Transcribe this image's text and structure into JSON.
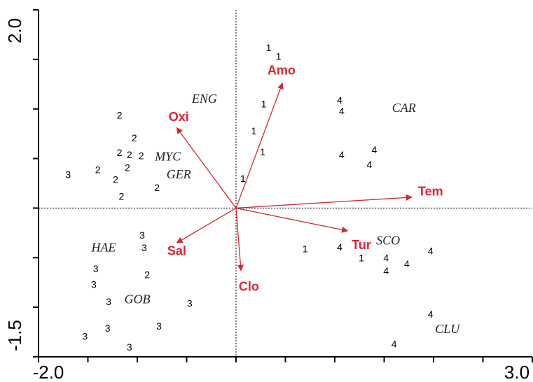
{
  "chart_data": {
    "type": "scatter",
    "title": "",
    "xlabel": "",
    "ylabel": "",
    "xlim": [
      -2.0,
      3.0
    ],
    "ylim": [
      -1.5,
      2.0
    ],
    "x_tick_labels": [
      "-2.0",
      "3.0"
    ],
    "y_tick_labels": [
      "2.0",
      "-1.5"
    ],
    "origin_lines": true,
    "sample_points": [
      {
        "label": "1",
        "x": 0.33,
        "y": 1.61
      },
      {
        "label": "1",
        "x": 0.43,
        "y": 1.52
      },
      {
        "label": "1",
        "x": 0.28,
        "y": 1.04
      },
      {
        "label": "1",
        "x": 0.18,
        "y": 0.77
      },
      {
        "label": "1",
        "x": 0.27,
        "y": 0.56
      },
      {
        "label": "1",
        "x": 0.07,
        "y": 0.29
      },
      {
        "label": "1",
        "x": 0.7,
        "y": -0.42
      },
      {
        "label": "1",
        "x": 1.27,
        "y": -0.51
      },
      {
        "label": "2",
        "x": -1.18,
        "y": 0.93
      },
      {
        "label": "2",
        "x": -1.03,
        "y": 0.7
      },
      {
        "label": "2",
        "x": -1.18,
        "y": 0.55
      },
      {
        "label": "2",
        "x": -1.08,
        "y": 0.53
      },
      {
        "label": "2",
        "x": -0.96,
        "y": 0.52
      },
      {
        "label": "2",
        "x": -1.1,
        "y": 0.4
      },
      {
        "label": "2",
        "x": -1.4,
        "y": 0.38
      },
      {
        "label": "2",
        "x": -1.22,
        "y": 0.28
      },
      {
        "label": "2",
        "x": -0.8,
        "y": 0.2
      },
      {
        "label": "2",
        "x": -1.16,
        "y": 0.11
      },
      {
        "label": "2",
        "x": -0.9,
        "y": -0.68
      },
      {
        "label": "3",
        "x": -1.7,
        "y": 0.33
      },
      {
        "label": "3",
        "x": -0.95,
        "y": -0.28
      },
      {
        "label": "3",
        "x": -0.93,
        "y": -0.41
      },
      {
        "label": "3",
        "x": -1.42,
        "y": -0.62
      },
      {
        "label": "3",
        "x": -1.44,
        "y": -0.78
      },
      {
        "label": "3",
        "x": -1.29,
        "y": -0.95
      },
      {
        "label": "3",
        "x": -0.47,
        "y": -0.97
      },
      {
        "label": "3",
        "x": -1.3,
        "y": -1.22
      },
      {
        "label": "3",
        "x": -0.78,
        "y": -1.2
      },
      {
        "label": "3",
        "x": -1.53,
        "y": -1.3
      },
      {
        "label": "3",
        "x": -1.08,
        "y": -1.41
      },
      {
        "label": "4",
        "x": 1.05,
        "y": 1.08
      },
      {
        "label": "4",
        "x": 1.07,
        "y": 0.97
      },
      {
        "label": "4",
        "x": 1.4,
        "y": 0.58
      },
      {
        "label": "4",
        "x": 1.07,
        "y": 0.53
      },
      {
        "label": "4",
        "x": 1.35,
        "y": 0.43
      },
      {
        "label": "4",
        "x": 1.05,
        "y": -0.4
      },
      {
        "label": "4",
        "x": 1.97,
        "y": -0.44
      },
      {
        "label": "4",
        "x": 1.52,
        "y": -0.51
      },
      {
        "label": "4",
        "x": 1.73,
        "y": -0.57
      },
      {
        "label": "4",
        "x": 1.52,
        "y": -0.64
      },
      {
        "label": "4",
        "x": 1.97,
        "y": -1.08
      },
      {
        "label": "4",
        "x": 1.6,
        "y": -1.38
      }
    ],
    "species": [
      {
        "label": "ENG",
        "x": -0.32,
        "y": 1.09
      },
      {
        "label": "CAR",
        "x": 1.7,
        "y": 1.0
      },
      {
        "label": "MYC",
        "x": -0.69,
        "y": 0.51
      },
      {
        "label": "GER",
        "x": -0.58,
        "y": 0.33
      },
      {
        "label": "HAE",
        "x": -1.34,
        "y": -0.41
      },
      {
        "label": "SCO",
        "x": 1.54,
        "y": -0.34
      },
      {
        "label": "GOB",
        "x": -1.0,
        "y": -0.93
      },
      {
        "label": "CLU",
        "x": 2.14,
        "y": -1.23
      }
    ],
    "environmental_vectors": [
      {
        "label": "Amo",
        "x": 0.47,
        "y": 1.26,
        "label_x": 0.46,
        "label_y": 1.38
      },
      {
        "label": "Oxi",
        "x": -0.6,
        "y": 0.81,
        "label_x": -0.58,
        "label_y": 0.91
      },
      {
        "label": "Tem",
        "x": 1.78,
        "y": 0.11,
        "label_x": 1.97,
        "label_y": 0.16
      },
      {
        "label": "Sal",
        "x": -0.6,
        "y": -0.35,
        "label_x": -0.6,
        "label_y": -0.44
      },
      {
        "label": "Tur",
        "x": 1.13,
        "y": -0.23,
        "label_x": 1.27,
        "label_y": -0.38
      },
      {
        "label": "Clo",
        "x": 0.05,
        "y": -0.63,
        "label_x": 0.13,
        "label_y": -0.8
      }
    ],
    "colors": {
      "vectors": "#d7262e",
      "vector_labels": "#e8202e",
      "points": "#000000",
      "axes": "#000000"
    }
  }
}
